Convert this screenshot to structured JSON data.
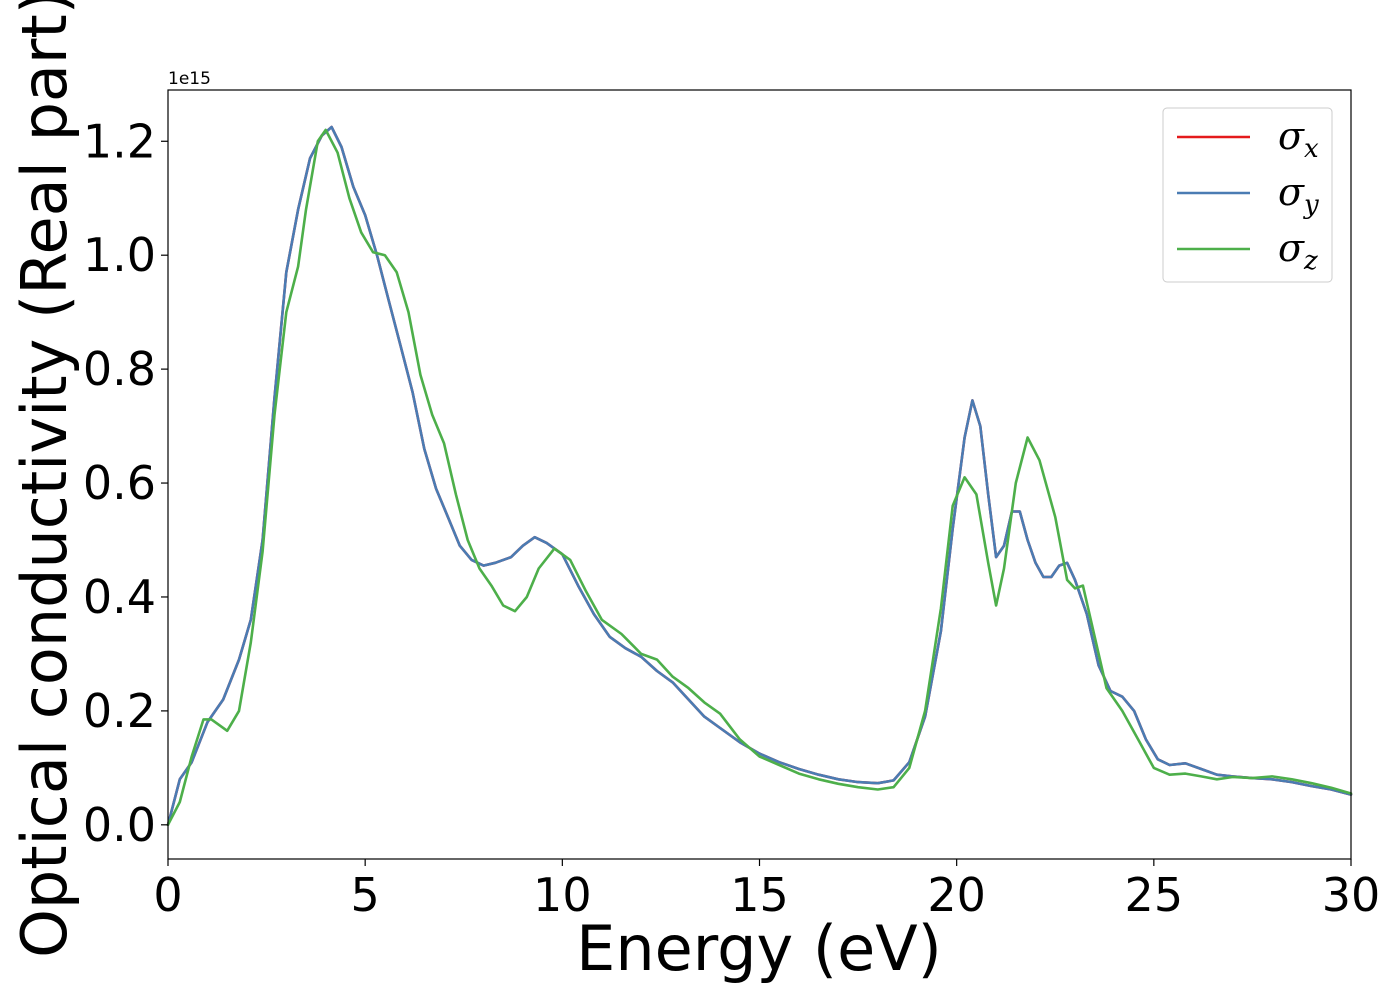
{
  "chart_data": {
    "type": "line",
    "xlabel": "Energy (eV)",
    "ylabel": "Optical conductivity (Real part)",
    "y_offset_text": "1e15",
    "xlim": [
      0,
      30
    ],
    "ylim": [
      -0.06,
      1.29
    ],
    "x_ticks": [
      0,
      5,
      10,
      15,
      20,
      25,
      30
    ],
    "x_tick_labels": [
      "0",
      "5",
      "10",
      "15",
      "20",
      "25",
      "30"
    ],
    "y_ticks": [
      0.0,
      0.2,
      0.4,
      0.6,
      0.8,
      1.0,
      1.2
    ],
    "y_tick_labels": [
      "0.0",
      "0.2",
      "0.4",
      "0.6",
      "0.8",
      "1.0",
      "1.2"
    ],
    "grid": false,
    "legend_position": "top-right",
    "series": [
      {
        "name": "σx",
        "legend_base": "σ",
        "legend_sub": "x",
        "color": "#e41a1c",
        "points": [
          [
            0,
            0
          ],
          [
            0.3,
            0.08
          ],
          [
            0.6,
            0.11
          ],
          [
            1.0,
            0.18
          ],
          [
            1.4,
            0.22
          ],
          [
            1.8,
            0.29
          ],
          [
            2.1,
            0.36
          ],
          [
            2.4,
            0.5
          ],
          [
            2.7,
            0.75
          ],
          [
            3.0,
            0.97
          ],
          [
            3.3,
            1.08
          ],
          [
            3.6,
            1.17
          ],
          [
            3.9,
            1.21
          ],
          [
            4.15,
            1.225
          ],
          [
            4.4,
            1.19
          ],
          [
            4.7,
            1.12
          ],
          [
            5.0,
            1.07
          ],
          [
            5.3,
            1.0
          ],
          [
            5.6,
            0.92
          ],
          [
            5.9,
            0.84
          ],
          [
            6.2,
            0.76
          ],
          [
            6.5,
            0.66
          ],
          [
            6.8,
            0.59
          ],
          [
            7.1,
            0.54
          ],
          [
            7.4,
            0.49
          ],
          [
            7.7,
            0.465
          ],
          [
            8.0,
            0.455
          ],
          [
            8.3,
            0.46
          ],
          [
            8.7,
            0.47
          ],
          [
            9.0,
            0.49
          ],
          [
            9.3,
            0.505
          ],
          [
            9.6,
            0.495
          ],
          [
            10.0,
            0.475
          ],
          [
            10.4,
            0.42
          ],
          [
            10.8,
            0.37
          ],
          [
            11.2,
            0.33
          ],
          [
            11.6,
            0.31
          ],
          [
            12.0,
            0.295
          ],
          [
            12.4,
            0.27
          ],
          [
            12.8,
            0.25
          ],
          [
            13.2,
            0.22
          ],
          [
            13.6,
            0.19
          ],
          [
            14.0,
            0.17
          ],
          [
            14.5,
            0.145
          ],
          [
            15.0,
            0.125
          ],
          [
            15.5,
            0.11
          ],
          [
            16.0,
            0.098
          ],
          [
            16.5,
            0.088
          ],
          [
            17.0,
            0.08
          ],
          [
            17.5,
            0.075
          ],
          [
            18.0,
            0.073
          ],
          [
            18.4,
            0.078
          ],
          [
            18.8,
            0.11
          ],
          [
            19.2,
            0.19
          ],
          [
            19.6,
            0.34
          ],
          [
            19.9,
            0.52
          ],
          [
            20.2,
            0.68
          ],
          [
            20.4,
            0.745
          ],
          [
            20.6,
            0.7
          ],
          [
            20.8,
            0.58
          ],
          [
            21.0,
            0.47
          ],
          [
            21.2,
            0.49
          ],
          [
            21.4,
            0.55
          ],
          [
            21.6,
            0.55
          ],
          [
            21.8,
            0.5
          ],
          [
            22.0,
            0.46
          ],
          [
            22.2,
            0.435
          ],
          [
            22.4,
            0.435
          ],
          [
            22.6,
            0.455
          ],
          [
            22.8,
            0.46
          ],
          [
            23.0,
            0.43
          ],
          [
            23.3,
            0.37
          ],
          [
            23.6,
            0.28
          ],
          [
            23.9,
            0.235
          ],
          [
            24.2,
            0.225
          ],
          [
            24.5,
            0.2
          ],
          [
            24.8,
            0.15
          ],
          [
            25.1,
            0.115
          ],
          [
            25.4,
            0.105
          ],
          [
            25.8,
            0.108
          ],
          [
            26.2,
            0.098
          ],
          [
            26.6,
            0.088
          ],
          [
            27.0,
            0.085
          ],
          [
            27.5,
            0.082
          ],
          [
            28.0,
            0.08
          ],
          [
            28.5,
            0.075
          ],
          [
            29.0,
            0.068
          ],
          [
            29.5,
            0.062
          ],
          [
            30.0,
            0.053
          ]
        ]
      },
      {
        "name": "σy",
        "legend_base": "σ",
        "legend_sub": "y",
        "color": "#4a7cb3",
        "points": [
          [
            0,
            0
          ],
          [
            0.3,
            0.08
          ],
          [
            0.6,
            0.11
          ],
          [
            1.0,
            0.18
          ],
          [
            1.4,
            0.22
          ],
          [
            1.8,
            0.29
          ],
          [
            2.1,
            0.36
          ],
          [
            2.4,
            0.5
          ],
          [
            2.7,
            0.75
          ],
          [
            3.0,
            0.97
          ],
          [
            3.3,
            1.08
          ],
          [
            3.6,
            1.17
          ],
          [
            3.9,
            1.21
          ],
          [
            4.15,
            1.225
          ],
          [
            4.4,
            1.19
          ],
          [
            4.7,
            1.12
          ],
          [
            5.0,
            1.07
          ],
          [
            5.3,
            1.0
          ],
          [
            5.6,
            0.92
          ],
          [
            5.9,
            0.84
          ],
          [
            6.2,
            0.76
          ],
          [
            6.5,
            0.66
          ],
          [
            6.8,
            0.59
          ],
          [
            7.1,
            0.54
          ],
          [
            7.4,
            0.49
          ],
          [
            7.7,
            0.465
          ],
          [
            8.0,
            0.455
          ],
          [
            8.3,
            0.46
          ],
          [
            8.7,
            0.47
          ],
          [
            9.0,
            0.49
          ],
          [
            9.3,
            0.505
          ],
          [
            9.6,
            0.495
          ],
          [
            10.0,
            0.475
          ],
          [
            10.4,
            0.42
          ],
          [
            10.8,
            0.37
          ],
          [
            11.2,
            0.33
          ],
          [
            11.6,
            0.31
          ],
          [
            12.0,
            0.295
          ],
          [
            12.4,
            0.27
          ],
          [
            12.8,
            0.25
          ],
          [
            13.2,
            0.22
          ],
          [
            13.6,
            0.19
          ],
          [
            14.0,
            0.17
          ],
          [
            14.5,
            0.145
          ],
          [
            15.0,
            0.125
          ],
          [
            15.5,
            0.11
          ],
          [
            16.0,
            0.098
          ],
          [
            16.5,
            0.088
          ],
          [
            17.0,
            0.08
          ],
          [
            17.5,
            0.075
          ],
          [
            18.0,
            0.073
          ],
          [
            18.4,
            0.078
          ],
          [
            18.8,
            0.11
          ],
          [
            19.2,
            0.19
          ],
          [
            19.6,
            0.34
          ],
          [
            19.9,
            0.52
          ],
          [
            20.2,
            0.68
          ],
          [
            20.4,
            0.745
          ],
          [
            20.6,
            0.7
          ],
          [
            20.8,
            0.58
          ],
          [
            21.0,
            0.47
          ],
          [
            21.2,
            0.49
          ],
          [
            21.4,
            0.55
          ],
          [
            21.6,
            0.55
          ],
          [
            21.8,
            0.5
          ],
          [
            22.0,
            0.46
          ],
          [
            22.2,
            0.435
          ],
          [
            22.4,
            0.435
          ],
          [
            22.6,
            0.455
          ],
          [
            22.8,
            0.46
          ],
          [
            23.0,
            0.43
          ],
          [
            23.3,
            0.37
          ],
          [
            23.6,
            0.28
          ],
          [
            23.9,
            0.235
          ],
          [
            24.2,
            0.225
          ],
          [
            24.5,
            0.2
          ],
          [
            24.8,
            0.15
          ],
          [
            25.1,
            0.115
          ],
          [
            25.4,
            0.105
          ],
          [
            25.8,
            0.108
          ],
          [
            26.2,
            0.098
          ],
          [
            26.6,
            0.088
          ],
          [
            27.0,
            0.085
          ],
          [
            27.5,
            0.082
          ],
          [
            28.0,
            0.08
          ],
          [
            28.5,
            0.075
          ],
          [
            29.0,
            0.068
          ],
          [
            29.5,
            0.062
          ],
          [
            30.0,
            0.053
          ]
        ]
      },
      {
        "name": "σz",
        "legend_base": "σ",
        "legend_sub": "z",
        "color": "#4daf4a",
        "points": [
          [
            0,
            0
          ],
          [
            0.3,
            0.04
          ],
          [
            0.6,
            0.12
          ],
          [
            0.9,
            0.185
          ],
          [
            1.1,
            0.185
          ],
          [
            1.5,
            0.165
          ],
          [
            1.8,
            0.2
          ],
          [
            2.1,
            0.32
          ],
          [
            2.4,
            0.48
          ],
          [
            2.7,
            0.72
          ],
          [
            3.0,
            0.9
          ],
          [
            3.3,
            0.98
          ],
          [
            3.5,
            1.08
          ],
          [
            3.8,
            1.2
          ],
          [
            4.0,
            1.22
          ],
          [
            4.3,
            1.18
          ],
          [
            4.6,
            1.1
          ],
          [
            4.9,
            1.04
          ],
          [
            5.2,
            1.005
          ],
          [
            5.5,
            1.0
          ],
          [
            5.8,
            0.97
          ],
          [
            6.1,
            0.9
          ],
          [
            6.4,
            0.79
          ],
          [
            6.7,
            0.72
          ],
          [
            7.0,
            0.67
          ],
          [
            7.3,
            0.58
          ],
          [
            7.6,
            0.5
          ],
          [
            7.9,
            0.45
          ],
          [
            8.2,
            0.42
          ],
          [
            8.5,
            0.385
          ],
          [
            8.8,
            0.375
          ],
          [
            9.1,
            0.4
          ],
          [
            9.4,
            0.45
          ],
          [
            9.8,
            0.485
          ],
          [
            10.2,
            0.465
          ],
          [
            10.6,
            0.41
          ],
          [
            11.0,
            0.36
          ],
          [
            11.5,
            0.335
          ],
          [
            12.0,
            0.3
          ],
          [
            12.4,
            0.29
          ],
          [
            12.8,
            0.26
          ],
          [
            13.2,
            0.24
          ],
          [
            13.6,
            0.215
          ],
          [
            14.0,
            0.195
          ],
          [
            14.5,
            0.15
          ],
          [
            15.0,
            0.12
          ],
          [
            15.5,
            0.105
          ],
          [
            16.0,
            0.09
          ],
          [
            16.5,
            0.08
          ],
          [
            17.0,
            0.072
          ],
          [
            17.5,
            0.066
          ],
          [
            18.0,
            0.062
          ],
          [
            18.4,
            0.066
          ],
          [
            18.8,
            0.1
          ],
          [
            19.2,
            0.2
          ],
          [
            19.6,
            0.38
          ],
          [
            19.9,
            0.56
          ],
          [
            20.2,
            0.61
          ],
          [
            20.5,
            0.58
          ],
          [
            20.8,
            0.46
          ],
          [
            21.0,
            0.385
          ],
          [
            21.2,
            0.45
          ],
          [
            21.5,
            0.6
          ],
          [
            21.8,
            0.68
          ],
          [
            22.1,
            0.64
          ],
          [
            22.5,
            0.54
          ],
          [
            22.8,
            0.43
          ],
          [
            23.0,
            0.415
          ],
          [
            23.2,
            0.42
          ],
          [
            23.5,
            0.33
          ],
          [
            23.8,
            0.24
          ],
          [
            24.2,
            0.2
          ],
          [
            24.6,
            0.15
          ],
          [
            25.0,
            0.1
          ],
          [
            25.4,
            0.088
          ],
          [
            25.8,
            0.09
          ],
          [
            26.2,
            0.085
          ],
          [
            26.6,
            0.08
          ],
          [
            27.0,
            0.084
          ],
          [
            27.5,
            0.082
          ],
          [
            28.0,
            0.085
          ],
          [
            28.5,
            0.08
          ],
          [
            29.0,
            0.073
          ],
          [
            29.5,
            0.065
          ],
          [
            30.0,
            0.055
          ]
        ]
      }
    ]
  }
}
